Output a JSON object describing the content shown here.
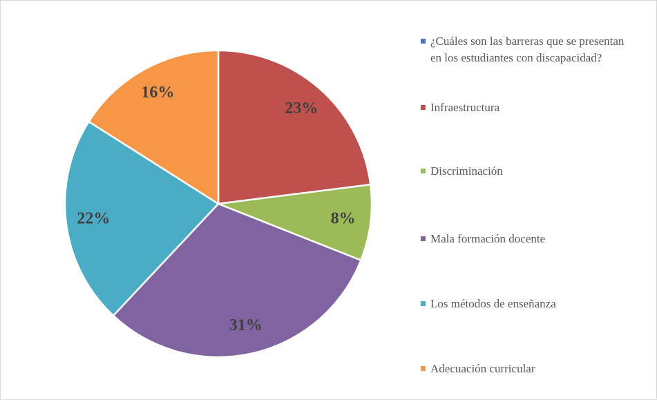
{
  "chart_data": {
    "type": "pie",
    "categories": [
      "¿Cuáles son las barreras que se presentan en los estudiantes con discapacidad?",
      "Infraestructura",
      "Discriminación",
      "Mala formación docente",
      "Los métodos de enseñanza",
      "Adecuación curricular"
    ],
    "values": [
      null,
      23,
      8,
      31,
      22,
      16
    ],
    "value_labels": [
      null,
      "23%",
      "8%",
      "31%",
      "22%",
      "16%"
    ],
    "colors": [
      "#4472c4",
      "#c0504d",
      "#9bbb59",
      "#8064a2",
      "#4bacc6",
      "#f79646"
    ],
    "legend": "right"
  }
}
